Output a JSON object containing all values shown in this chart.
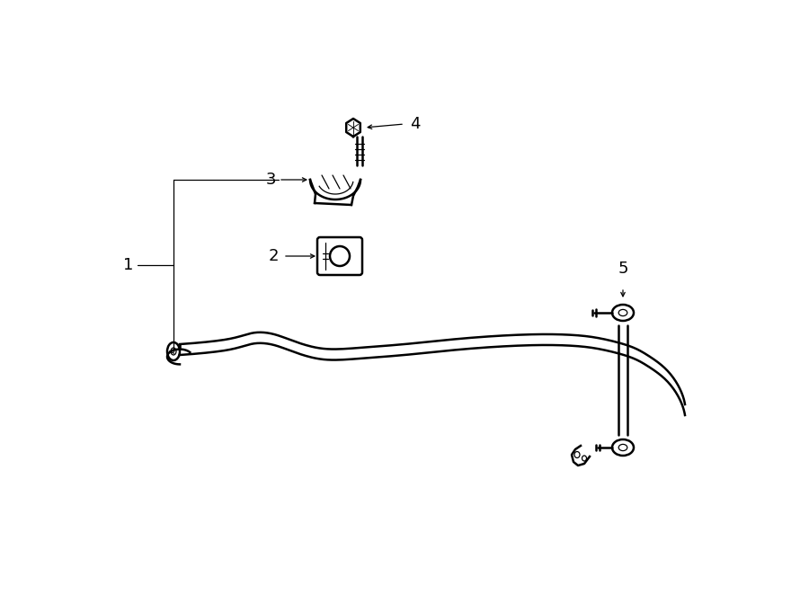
{
  "bg_color": "#ffffff",
  "line_color": "#000000",
  "lw_main": 1.8,
  "lw_thin": 0.9,
  "label_fontsize": 13,
  "fig_width": 9.0,
  "fig_height": 6.61,
  "dpi": 100
}
